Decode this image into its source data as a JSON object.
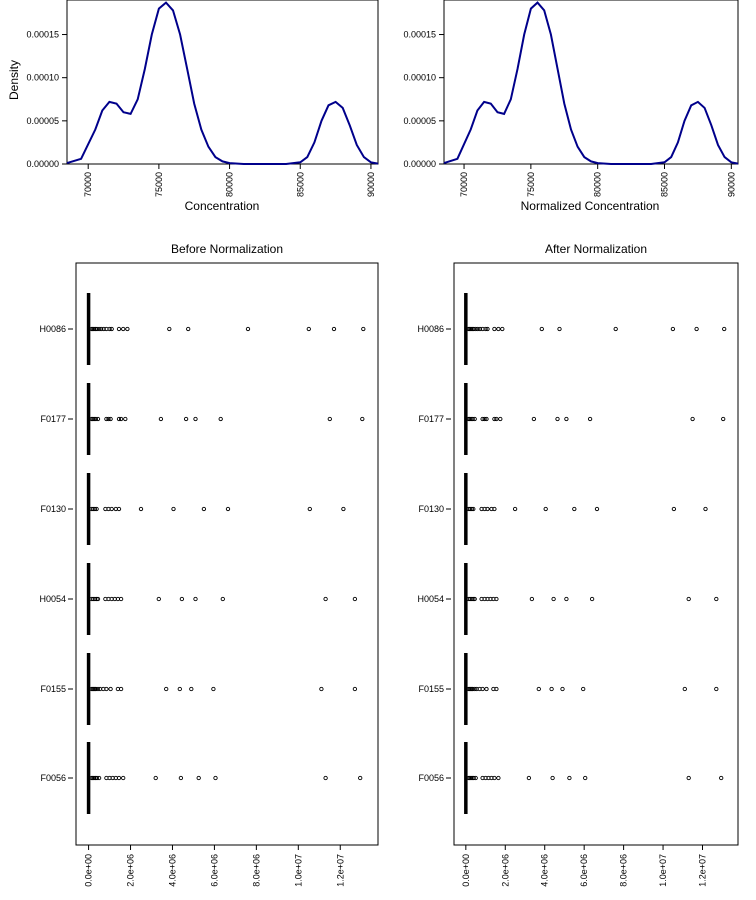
{
  "chart_data": [
    {
      "type": "line",
      "title": "",
      "xlabel": "Concentration",
      "ylabel": "Density",
      "xlim": [
        68500,
        90500
      ],
      "ylim": [
        0,
        0.00019
      ],
      "xticks": [
        "70000",
        "75000",
        "80000",
        "85000",
        "90000"
      ],
      "yticks": [
        "0.00000",
        "0.00005",
        "0.00010",
        "0.00015"
      ],
      "series": [
        {
          "color": "#00008B",
          "x": [
            68500,
            69500,
            70500,
            71000,
            71500,
            72000,
            72500,
            73000,
            73500,
            74000,
            74500,
            75000,
            75500,
            76000,
            76500,
            77000,
            77500,
            78000,
            78500,
            79000,
            79500,
            80000,
            81000,
            82000,
            83000,
            84000,
            85000,
            85500,
            86000,
            86500,
            87000,
            87500,
            88000,
            88500,
            89000,
            89500,
            90000,
            90500
          ],
          "y": [
            1e-06,
            6e-06,
            4e-05,
            6.2e-05,
            7.2e-05,
            7e-05,
            6e-05,
            5.8e-05,
            7.5e-05,
            0.00011,
            0.00015,
            0.00018,
            0.000187,
            0.000178,
            0.00015,
            0.00011,
            7e-05,
            4e-05,
            2e-05,
            8e-06,
            3e-06,
            1e-06,
            0,
            0,
            0,
            0,
            2e-06,
            8e-06,
            2.5e-05,
            5e-05,
            6.8e-05,
            7.2e-05,
            6.5e-05,
            4.5e-05,
            2.2e-05,
            8e-06,
            2e-06,
            5e-07
          ]
        }
      ]
    },
    {
      "type": "line",
      "title": "",
      "xlabel": "Normalized Concentration",
      "ylabel": "",
      "xlim": [
        68500,
        90500
      ],
      "ylim": [
        0,
        0.00019
      ],
      "xticks": [
        "70000",
        "75000",
        "80000",
        "85000",
        "90000"
      ],
      "yticks": [
        "0.00000",
        "0.00005",
        "0.00010",
        "0.00015"
      ],
      "series": [
        {
          "color": "#00008B",
          "x": [
            68500,
            69500,
            70500,
            71000,
            71500,
            72000,
            72500,
            73000,
            73500,
            74000,
            74500,
            75000,
            75500,
            76000,
            76500,
            77000,
            77500,
            78000,
            78500,
            79000,
            79500,
            80000,
            81000,
            82000,
            83000,
            84000,
            85000,
            85500,
            86000,
            86500,
            87000,
            87500,
            88000,
            88500,
            89000,
            89500,
            90000,
            90500
          ],
          "y": [
            1e-06,
            6e-06,
            4e-05,
            6.2e-05,
            7.2e-05,
            7e-05,
            6e-05,
            5.8e-05,
            7.5e-05,
            0.00011,
            0.00015,
            0.00018,
            0.000187,
            0.000178,
            0.00015,
            0.00011,
            7e-05,
            4e-05,
            2e-05,
            8e-06,
            3e-06,
            1e-06,
            0,
            0,
            0,
            0,
            2e-06,
            8e-06,
            2.5e-05,
            5e-05,
            6.8e-05,
            7.2e-05,
            6.5e-05,
            4.5e-05,
            2.2e-05,
            8e-06,
            2e-06,
            5e-07
          ]
        }
      ]
    },
    {
      "type": "scatter",
      "title": "Before Normalization",
      "xlabel": "",
      "ylabel": "",
      "xlim": [
        -600000,
        13800000
      ],
      "xticks": [
        "0.0e+00",
        "2.0e+06",
        "4.0e+06",
        "6.0e+06",
        "8.0e+06",
        "1.0e+07",
        "1.2e+07"
      ],
      "categories": [
        "H0086",
        "F0177",
        "F0130",
        "H0054",
        "F0155",
        "F0056"
      ],
      "series": [
        {
          "name": "H0086",
          "outliers": [
            150000,
            200000,
            260000,
            330000,
            400000,
            500000,
            600000,
            720000,
            850000,
            1000000,
            1100000,
            1450000,
            1650000,
            1850000,
            3850000,
            4750000,
            7600000,
            10500000,
            11700000,
            13100000
          ]
        },
        {
          "name": "F0177",
          "outliers": [
            150000,
            200000,
            270000,
            350000,
            450000,
            850000,
            950000,
            1050000,
            1450000,
            1550000,
            1750000,
            3450000,
            4650000,
            5100000,
            6300000,
            11500000,
            13050000
          ]
        },
        {
          "name": "F0130",
          "outliers": [
            150000,
            220000,
            300000,
            380000,
            800000,
            950000,
            1100000,
            1300000,
            1450000,
            2500000,
            4050000,
            5500000,
            6650000,
            10550000,
            12150000
          ]
        },
        {
          "name": "H0054",
          "outliers": [
            150000,
            220000,
            300000,
            380000,
            450000,
            800000,
            950000,
            1100000,
            1250000,
            1400000,
            1550000,
            3350000,
            4450000,
            5100000,
            6400000,
            11300000,
            12700000
          ]
        },
        {
          "name": "F0155",
          "outliers": [
            150000,
            200000,
            250000,
            300000,
            350000,
            450000,
            550000,
            700000,
            850000,
            1050000,
            1400000,
            1550000,
            3700000,
            4350000,
            4900000,
            5950000,
            11100000,
            12700000
          ]
        },
        {
          "name": "F0056",
          "outliers": [
            150000,
            200000,
            260000,
            330000,
            400000,
            500000,
            850000,
            1000000,
            1150000,
            1300000,
            1450000,
            1650000,
            3200000,
            4400000,
            5250000,
            6050000,
            11300000,
            12950000
          ]
        }
      ]
    },
    {
      "type": "scatter",
      "title": "After Normalization",
      "xlabel": "",
      "ylabel": "",
      "xlim": [
        -600000,
        13800000
      ],
      "xticks": [
        "0.0e+00",
        "2.0e+06",
        "4.0e+06",
        "6.0e+06",
        "8.0e+06",
        "1.0e+07",
        "1.2e+07"
      ],
      "categories": [
        "H0086",
        "F0177",
        "F0130",
        "H0054",
        "F0155",
        "F0056"
      ],
      "series": [
        {
          "name": "H0086",
          "outliers": [
            150000,
            200000,
            260000,
            330000,
            400000,
            500000,
            600000,
            720000,
            850000,
            1000000,
            1100000,
            1450000,
            1650000,
            1850000,
            3850000,
            4750000,
            7600000,
            10500000,
            11700000,
            13100000
          ]
        },
        {
          "name": "F0177",
          "outliers": [
            150000,
            200000,
            270000,
            350000,
            450000,
            850000,
            950000,
            1050000,
            1450000,
            1550000,
            1750000,
            3450000,
            4650000,
            5100000,
            6300000,
            11500000,
            13050000
          ]
        },
        {
          "name": "F0130",
          "outliers": [
            150000,
            220000,
            300000,
            380000,
            800000,
            950000,
            1100000,
            1300000,
            1450000,
            2500000,
            4050000,
            5500000,
            6650000,
            10550000,
            12150000
          ]
        },
        {
          "name": "H0054",
          "outliers": [
            150000,
            220000,
            300000,
            380000,
            450000,
            800000,
            950000,
            1100000,
            1250000,
            1400000,
            1550000,
            3350000,
            4450000,
            5100000,
            6400000,
            11300000,
            12700000
          ]
        },
        {
          "name": "F0155",
          "outliers": [
            150000,
            200000,
            250000,
            300000,
            350000,
            450000,
            550000,
            700000,
            850000,
            1050000,
            1400000,
            1550000,
            3700000,
            4350000,
            4900000,
            5950000,
            11100000,
            12700000
          ]
        },
        {
          "name": "F0056",
          "outliers": [
            150000,
            200000,
            260000,
            330000,
            400000,
            500000,
            850000,
            1000000,
            1150000,
            1300000,
            1450000,
            1650000,
            3200000,
            4400000,
            5250000,
            6050000,
            11300000,
            12950000
          ]
        }
      ]
    }
  ]
}
